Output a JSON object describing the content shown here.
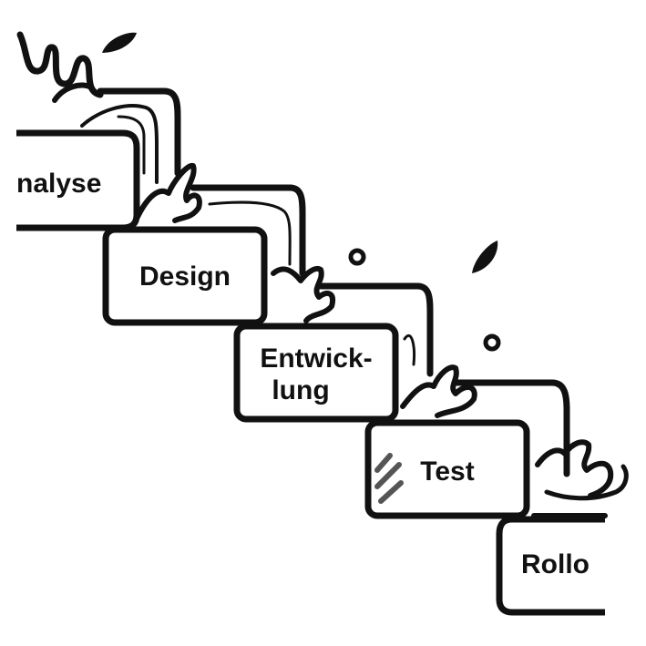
{
  "diagram": {
    "steps": [
      {
        "id": "analyse",
        "lines": [
          "nalyse"
        ]
      },
      {
        "id": "design",
        "lines": [
          "Design"
        ]
      },
      {
        "id": "entwicklung",
        "lines": [
          "Entwick-",
          "lung"
        ]
      },
      {
        "id": "test",
        "lines": [
          "Test"
        ]
      },
      {
        "id": "rollout",
        "lines": [
          "Rollo"
        ]
      }
    ],
    "colors": {
      "stroke": "#111111",
      "fill": "#ffffff",
      "hatch": "#555555"
    }
  }
}
